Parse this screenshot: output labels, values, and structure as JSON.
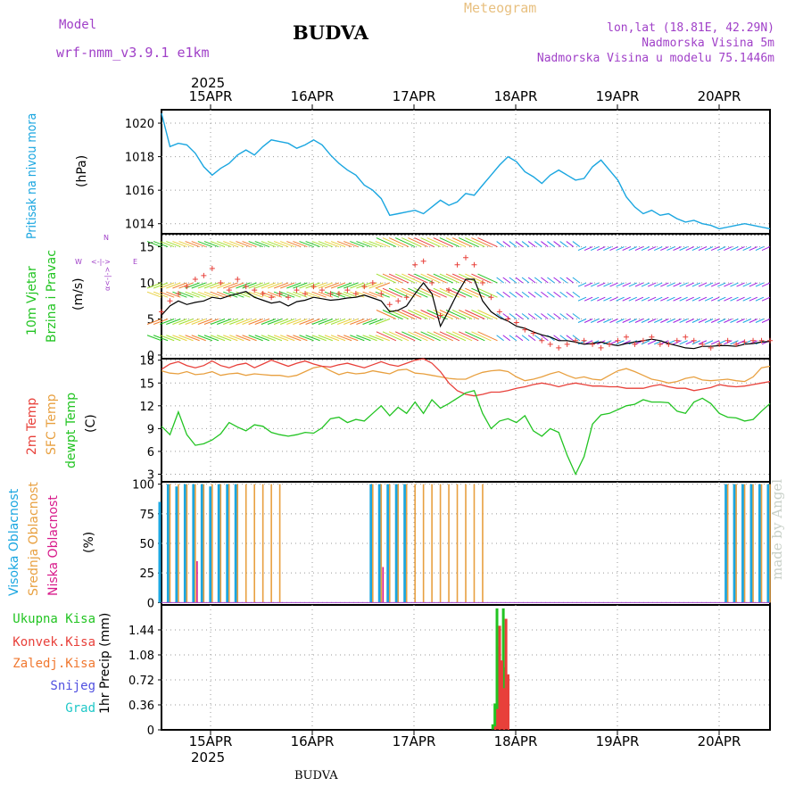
{
  "header": {
    "model_label": "Model",
    "model_name": "wrf-nmm_v3.9.1  e1km",
    "station": "BUDVA",
    "title": "Meteogram",
    "coords": "lon,lat (18.81E, 42.29N)",
    "elevation": "Nadmorska Visina 5m",
    "model_elevation": "Nadmorska Visina u modelu 75.1446m",
    "year": "2025",
    "footer_station": "BUDVA",
    "watermark": "made by Angel"
  },
  "dates": [
    "15APR",
    "16APR",
    "17APR",
    "18APR",
    "19APR",
    "20APR"
  ],
  "colors": {
    "pressure": "#1aa6e0",
    "temp2m": "#e8403a",
    "sfc": "#e8a040",
    "dewpt": "#22c422",
    "wind_line": "#000000",
    "gust": "#e8403a",
    "high_cloud": "#1aa6e0",
    "mid_cloud": "#e8a040",
    "low_cloud": "#d81a8a",
    "purple_text": "#a040c8",
    "title_text": "#e8c080"
  },
  "panels": {
    "pressure": {
      "labels": [
        "Pritisak na nivou mora"
      ],
      "unit": "(hPa)"
    },
    "wind": {
      "labels": [
        "10m Vjetar",
        "Brzina i Pravac"
      ],
      "unit": "(m/s)",
      "compass": [
        "N",
        "S",
        "W",
        "E",
        "<-|->",
        "α<-|->"
      ]
    },
    "temp": {
      "labels": [
        "2m Temp",
        "SFC Temp",
        "dewpt Temp"
      ],
      "unit": "(C)"
    },
    "cloud": {
      "labels": [
        "Visoka Oblacnost",
        "Srednja Oblacnost",
        "Niska Oblacnost"
      ],
      "unit": "(%)"
    },
    "precip": {
      "labels": [
        "Ukupna Kisa",
        "Konvek.Kisa",
        "Zaledj.Kisa",
        "Snijeg",
        "Grad"
      ],
      "unit": "1hr Precip (mm)",
      "label_colors": [
        "#22c422",
        "#e8403a",
        "#f07830",
        "#5050e0",
        "#20c8c8"
      ]
    }
  },
  "chart_data": [
    {
      "type": "line",
      "title": "Pritisak na nivou mora",
      "ylabel": "(hPa)",
      "ylim": [
        1013.4,
        1020.8
      ],
      "yticks": [
        1014,
        1016,
        1018,
        1020
      ],
      "x": [
        0,
        2,
        4,
        6,
        8,
        10,
        12,
        14,
        16,
        18,
        20,
        22,
        24,
        26,
        28,
        30,
        32,
        34,
        36,
        38,
        40,
        42,
        44,
        46,
        48,
        50,
        52,
        54,
        56,
        58,
        60,
        62,
        64,
        66,
        68,
        70,
        72,
        74,
        76,
        78,
        80,
        82,
        84,
        86,
        88,
        90,
        92,
        94,
        96,
        98,
        100,
        102,
        104,
        106,
        108,
        110,
        112,
        114,
        116,
        118,
        120,
        122,
        124,
        126,
        128,
        130,
        132,
        134,
        136,
        138,
        140,
        142,
        144
      ],
      "series": [
        {
          "values": [
            1020.6,
            1018.6,
            1018.8,
            1018.7,
            1018.2,
            1017.4,
            1016.9,
            1017.3,
            1017.6,
            1018.1,
            1018.4,
            1018.1,
            1018.6,
            1019.0,
            1018.9,
            1018.8,
            1018.5,
            1018.7,
            1019.0,
            1018.7,
            1018.1,
            1017.6,
            1017.2,
            1016.9,
            1016.3,
            1016.0,
            1015.5,
            1014.5,
            1014.6,
            1014.7,
            1014.8,
            1014.6,
            1015.0,
            1015.4,
            1015.1,
            1015.3,
            1015.8,
            1015.7,
            1016.3,
            1016.9,
            1017.5,
            1018.0,
            1017.7,
            1017.1,
            1016.8,
            1016.4,
            1016.9,
            1017.2,
            1016.9,
            1016.6,
            1016.7,
            1017.4,
            1017.8,
            1017.2,
            1016.6,
            1015.6,
            1015.0,
            1014.6,
            1014.8,
            1014.5,
            1014.6,
            1014.3,
            1014.1,
            1014.2,
            1014.0,
            1013.9,
            1013.7,
            1013.8,
            1013.9,
            1014.0,
            1013.9,
            1013.8,
            1013.7
          ]
        }
      ]
    },
    {
      "type": "line",
      "title": "10m Vjetar Brzina i Pravac",
      "ylabel": "(m/s)",
      "ylim": [
        -0.5,
        16.8
      ],
      "yticks": [
        0,
        5,
        10,
        15
      ],
      "x": [
        0,
        2,
        4,
        6,
        8,
        10,
        12,
        14,
        16,
        18,
        20,
        22,
        24,
        26,
        28,
        30,
        32,
        34,
        36,
        38,
        40,
        42,
        44,
        46,
        48,
        50,
        52,
        54,
        56,
        58,
        60,
        62,
        64,
        66,
        68,
        70,
        72,
        74,
        76,
        78,
        80,
        82,
        84,
        86,
        88,
        90,
        92,
        94,
        96,
        98,
        100,
        102,
        104,
        106,
        108,
        110,
        112,
        114,
        116,
        118,
        120,
        122,
        124,
        126,
        128,
        130,
        132,
        134,
        136,
        138,
        140,
        142,
        144
      ],
      "series": [
        {
          "name": "wind",
          "values": [
            5.5,
            6.8,
            7.5,
            7.0,
            7.3,
            7.5,
            8.0,
            7.8,
            8.2,
            8.5,
            8.8,
            8.0,
            7.6,
            7.2,
            7.4,
            6.8,
            7.4,
            7.6,
            8.0,
            7.8,
            7.6,
            7.7,
            7.9,
            8.0,
            8.3,
            7.9,
            7.5,
            6.0,
            6.2,
            6.8,
            8.5,
            10.0,
            8.5,
            4.0,
            6.2,
            8.5,
            10.5,
            10.5,
            7.5,
            6.0,
            5.2,
            4.7,
            4.0,
            3.7,
            3.2,
            2.8,
            2.5,
            2.0,
            2.0,
            1.8,
            1.5,
            1.6,
            1.8,
            1.5,
            1.3,
            1.6,
            1.8,
            2.0,
            2.2,
            2.0,
            1.6,
            1.3,
            1.0,
            0.9,
            1.2,
            1.2,
            1.3,
            1.3,
            1.2,
            1.5,
            1.6,
            1.8,
            1.9
          ]
        },
        {
          "name": "gust",
          "values": [
            6.0,
            7.5,
            8.5,
            9.5,
            10.5,
            11.0,
            12.0,
            10.0,
            9.0,
            10.5,
            9.5,
            9.0,
            8.5,
            8.0,
            8.5,
            8.0,
            9.0,
            8.5,
            9.5,
            9.0,
            8.5,
            8.5,
            9.0,
            8.5,
            9.5,
            10.0,
            8.5,
            7.0,
            7.5,
            8.0,
            12.5,
            13.0,
            10.0,
            5.5,
            9.0,
            12.5,
            13.5,
            12.5,
            10.0,
            8.0,
            6.0,
            5.0,
            4.5,
            3.5,
            3.0,
            2.0,
            1.5,
            1.0,
            1.5,
            2.0,
            2.0,
            1.5,
            1.0,
            1.5,
            2.0,
            2.5,
            1.5,
            2.0,
            2.5,
            1.5,
            1.5,
            2.0,
            2.5,
            2.0,
            1.5,
            1.0,
            1.5,
            2.0,
            1.5,
            1.8,
            2.0,
            2.0,
            2.0
          ]
        }
      ]
    },
    {
      "type": "line",
      "title": "2m Temp / SFC Temp / dewpt Temp",
      "ylabel": "(C)",
      "ylim": [
        2.0,
        18.2
      ],
      "yticks": [
        3,
        6,
        9,
        12,
        15,
        18
      ],
      "x": [
        0,
        2,
        4,
        6,
        8,
        10,
        12,
        14,
        16,
        18,
        20,
        22,
        24,
        26,
        28,
        30,
        32,
        34,
        36,
        38,
        40,
        42,
        44,
        46,
        48,
        50,
        52,
        54,
        56,
        58,
        60,
        62,
        64,
        66,
        68,
        70,
        72,
        74,
        76,
        78,
        80,
        82,
        84,
        86,
        88,
        90,
        92,
        94,
        96,
        98,
        100,
        102,
        104,
        106,
        108,
        110,
        112,
        114,
        116,
        118,
        120,
        122,
        124,
        126,
        128,
        130,
        132,
        134,
        136,
        138,
        140,
        142,
        144
      ],
      "series": [
        {
          "name": "2m Temp",
          "values": [
            16.8,
            17.5,
            17.8,
            17.3,
            17.0,
            17.3,
            17.9,
            17.3,
            17.0,
            17.4,
            17.6,
            17.0,
            17.5,
            18.0,
            17.6,
            17.2,
            17.6,
            17.9,
            17.5,
            17.2,
            17.1,
            17.4,
            17.6,
            17.3,
            17.0,
            17.4,
            17.8,
            17.4,
            17.2,
            17.6,
            18.0,
            18.2,
            17.6,
            16.5,
            15.0,
            14.0,
            13.5,
            13.3,
            13.5,
            13.8,
            13.8,
            14.0,
            14.3,
            14.5,
            14.8,
            15.0,
            14.8,
            14.5,
            14.8,
            15.0,
            14.8,
            14.6,
            14.6,
            14.5,
            14.5,
            14.3,
            14.3,
            14.3,
            14.6,
            14.8,
            14.5,
            14.3,
            14.3,
            14.0,
            14.2,
            14.4,
            14.8,
            14.6,
            14.5,
            14.6,
            14.8,
            15.0,
            15.2
          ]
        },
        {
          "name": "SFC Temp",
          "values": [
            16.6,
            16.3,
            16.2,
            16.5,
            16.1,
            16.2,
            16.5,
            16.0,
            16.2,
            16.3,
            16.0,
            16.2,
            16.1,
            16.0,
            16.0,
            15.8,
            16.0,
            16.5,
            17.0,
            17.2,
            16.6,
            16.1,
            16.4,
            16.2,
            16.3,
            16.6,
            16.4,
            16.2,
            16.7,
            16.8,
            16.3,
            16.2,
            16.0,
            15.8,
            15.6,
            15.5,
            15.5,
            16.0,
            16.4,
            16.6,
            16.7,
            16.5,
            15.8,
            15.3,
            15.5,
            15.8,
            16.2,
            16.5,
            16.0,
            15.6,
            15.8,
            15.5,
            15.4,
            16.0,
            16.6,
            16.9,
            16.5,
            16.0,
            15.5,
            15.3,
            15.0,
            15.2,
            15.6,
            15.8,
            15.4,
            15.3,
            15.4,
            15.5,
            15.3,
            15.2,
            15.8,
            17.0,
            17.2
          ]
        },
        {
          "name": "dewpt Temp",
          "values": [
            9.3,
            8.2,
            11.2,
            8.2,
            6.8,
            7.0,
            7.5,
            8.3,
            9.8,
            9.2,
            8.7,
            9.5,
            9.3,
            8.5,
            8.2,
            8.0,
            8.2,
            8.5,
            8.4,
            9.1,
            10.3,
            10.5,
            9.8,
            10.2,
            10.0,
            11.0,
            12.0,
            10.7,
            11.8,
            11.0,
            12.5,
            11.0,
            12.8,
            11.7,
            12.3,
            13.0,
            13.7,
            14.0,
            11.0,
            9.0,
            10.0,
            10.3,
            9.8,
            10.7,
            8.7,
            8.0,
            9.0,
            8.5,
            5.5,
            3.0,
            5.3,
            9.6,
            10.8,
            11.0,
            11.5,
            12.0,
            12.2,
            12.8,
            12.5,
            12.5,
            12.4,
            11.3,
            11.0,
            12.5,
            13.0,
            12.3,
            11.0,
            10.5,
            10.4,
            10.0,
            10.2,
            11.3,
            12.3
          ]
        }
      ]
    },
    {
      "type": "bar",
      "title": "Visoka / Srednja / Niska Oblacnost",
      "ylabel": "(%)",
      "ylim": [
        -2,
        102
      ],
      "yticks": [
        0,
        25,
        50,
        75,
        100
      ],
      "x": [
        0,
        2,
        4,
        6,
        8,
        10,
        12,
        14,
        16,
        18,
        20,
        22,
        24,
        26,
        28,
        30,
        32,
        34,
        36,
        38,
        40,
        42,
        44,
        46,
        48,
        50,
        52,
        54,
        56,
        58,
        60,
        62,
        64,
        66,
        68,
        70,
        72,
        74,
        76,
        78,
        80,
        82,
        84,
        86,
        88,
        90,
        92,
        94,
        96,
        98,
        100,
        102,
        104,
        106,
        108,
        110,
        112,
        114,
        116,
        118,
        120,
        122,
        124,
        126,
        128,
        130,
        132,
        134,
        136,
        138,
        140,
        142,
        144
      ],
      "series": [
        {
          "name": "Visoka Oblacnost",
          "values": [
            85,
            100,
            98,
            100,
            100,
            100,
            98,
            100,
            100,
            100,
            0,
            0,
            0,
            0,
            0,
            0,
            0,
            0,
            0,
            0,
            0,
            0,
            0,
            0,
            0,
            100,
            100,
            100,
            100,
            100,
            0,
            0,
            0,
            0,
            0,
            0,
            0,
            0,
            0,
            0,
            0,
            0,
            0,
            0,
            0,
            0,
            0,
            0,
            0,
            0,
            0,
            0,
            0,
            0,
            0,
            0,
            0,
            0,
            0,
            0,
            0,
            0,
            0,
            0,
            0,
            0,
            0,
            100,
            100,
            100,
            100,
            100,
            100
          ]
        },
        {
          "name": "Srednja Oblacnost",
          "values": [
            0,
            100,
            100,
            100,
            100,
            100,
            100,
            100,
            100,
            100,
            100,
            100,
            100,
            100,
            100,
            0,
            0,
            0,
            0,
            0,
            0,
            0,
            0,
            0,
            0,
            100,
            100,
            100,
            100,
            100,
            100,
            100,
            100,
            100,
            100,
            100,
            100,
            100,
            100,
            0,
            0,
            0,
            0,
            0,
            0,
            0,
            0,
            0,
            0,
            0,
            0,
            0,
            0,
            0,
            0,
            0,
            0,
            0,
            0,
            0,
            0,
            0,
            0,
            0,
            0,
            0,
            0,
            100,
            100,
            100,
            100,
            100,
            100
          ]
        },
        {
          "name": "Niska Oblacnost",
          "values": [
            0,
            0,
            0,
            0,
            35,
            0,
            0,
            0,
            0,
            0,
            0,
            0,
            0,
            0,
            0,
            0,
            0,
            0,
            0,
            0,
            0,
            0,
            0,
            0,
            0,
            0,
            30,
            0,
            0,
            0,
            0,
            0,
            0,
            0,
            0,
            0,
            0,
            0,
            0,
            0,
            0,
            0,
            0,
            0,
            0,
            0,
            0,
            0,
            0,
            0,
            0,
            0,
            0,
            0,
            0,
            0,
            0,
            0,
            0,
            0,
            0,
            0,
            0,
            0,
            0,
            0,
            0,
            0,
            0,
            0,
            0,
            0,
            0
          ]
        }
      ]
    },
    {
      "type": "bar",
      "title": "1hr Precip",
      "ylabel": "1hr Precip (mm)",
      "ylim": [
        0,
        1.8
      ],
      "yticks": [
        0,
        0.36,
        0.72,
        1.08,
        1.44
      ],
      "x": [
        78.5,
        79.0,
        79.5,
        80.0,
        80.5,
        81.0,
        81.5,
        82.0,
        82.5,
        83.0,
        83.5
      ],
      "series": [
        {
          "name": "Ukupna Kisa",
          "values": [
            0.08,
            0.38,
            1.75,
            1.2,
            0.72,
            1.75,
            0.9,
            0.0,
            0.0,
            0.0,
            0.0
          ]
        },
        {
          "name": "Konvek.Kisa",
          "values": [
            0.05,
            0.3,
            1.5,
            1.0,
            0.6,
            1.6,
            0.8,
            0.0,
            0.0,
            0.0,
            0.0
          ]
        }
      ]
    }
  ]
}
